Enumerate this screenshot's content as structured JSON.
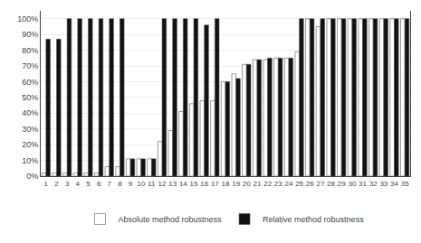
{
  "chart_data": {
    "type": "bar",
    "categories": [
      1,
      2,
      3,
      4,
      5,
      6,
      7,
      8,
      9,
      10,
      11,
      12,
      13,
      14,
      15,
      16,
      17,
      18,
      19,
      20,
      21,
      22,
      23,
      24,
      25,
      26,
      27,
      28,
      29,
      30,
      31,
      32,
      33,
      34,
      35
    ],
    "series": [
      {
        "name": "Absolute method robustness",
        "color": "#ffffff",
        "values": [
          2,
          2,
          2,
          2,
          2,
          2,
          6,
          6,
          11,
          11,
          11,
          22,
          29,
          41,
          46,
          48,
          48,
          60,
          65,
          71,
          74,
          74,
          75,
          75,
          79,
          100,
          95,
          100,
          100,
          100,
          100,
          100,
          100,
          100,
          100
        ]
      },
      {
        "name": "Relative method robustness",
        "color": "#111111",
        "values": [
          87,
          87,
          100,
          100,
          100,
          100,
          100,
          100,
          11,
          11,
          11,
          100,
          100,
          100,
          100,
          96,
          100,
          60,
          62,
          71,
          74,
          75,
          75,
          75,
          100,
          100,
          100,
          100,
          100,
          100,
          100,
          100,
          100,
          100,
          100
        ]
      }
    ],
    "ylim": [
      0,
      105
    ],
    "yticks": [
      {
        "value": 0,
        "label": "0%"
      },
      {
        "value": 10,
        "label": "10%"
      },
      {
        "value": 20,
        "label": "20%"
      },
      {
        "value": 30,
        "label": "30%"
      },
      {
        "value": 40,
        "label": "40%"
      },
      {
        "value": 50,
        "label": "50%"
      },
      {
        "value": 60,
        "label": "60%"
      },
      {
        "value": 70,
        "label": "70%"
      },
      {
        "value": 80,
        "label": "80%"
      },
      {
        "value": 90,
        "label": "90%"
      },
      {
        "value": 100,
        "label": "100%"
      }
    ],
    "grid": true,
    "legend": "bottom"
  }
}
